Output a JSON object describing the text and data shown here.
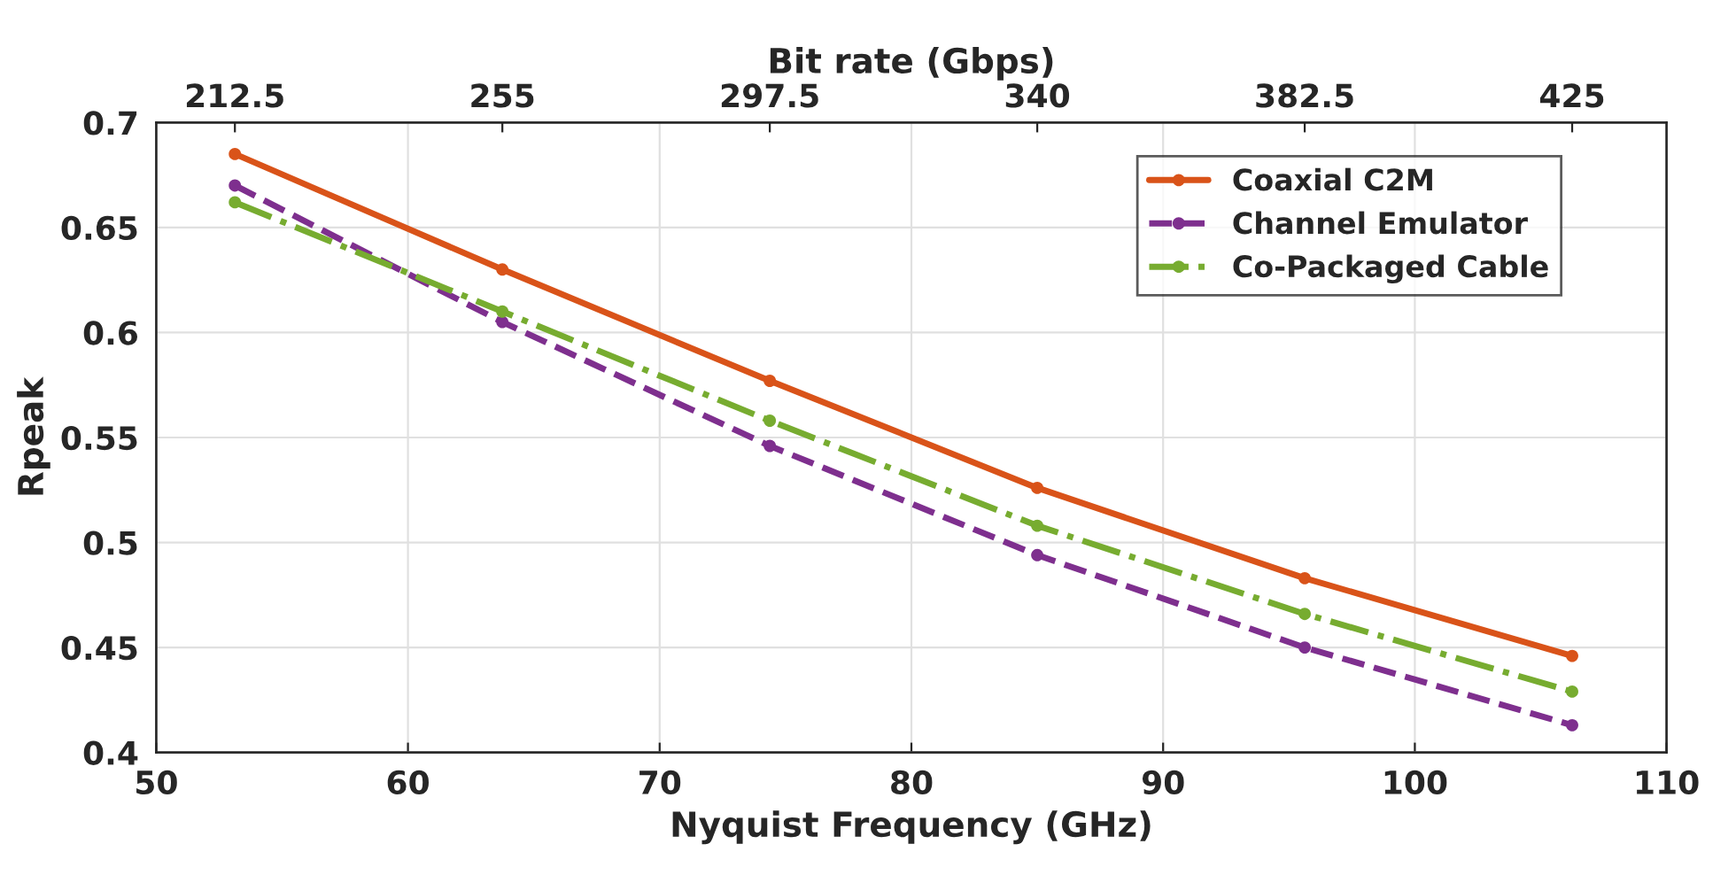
{
  "chart_data": {
    "type": "line",
    "xlabel": "Nyquist Frequency (GHz)",
    "ylabel": "Rpeak",
    "x2label": "Bit rate (Gbps)",
    "x": [
      53.125,
      63.75,
      74.375,
      85,
      95.625,
      106.25
    ],
    "series": [
      {
        "name": "Coaxial C2M",
        "color": "#d95319",
        "line_style": "solid",
        "values": [
          0.685,
          0.63,
          0.577,
          0.526,
          0.483,
          0.446
        ]
      },
      {
        "name": "Channel Emulator",
        "color": "#7e2f8e",
        "line_style": "dashed",
        "values": [
          0.67,
          0.605,
          0.546,
          0.494,
          0.45,
          0.413
        ]
      },
      {
        "name": "Co-Packaged Cable",
        "color": "#77ac30",
        "line_style": "dashdot",
        "values": [
          0.662,
          0.61,
          0.558,
          0.508,
          0.466,
          0.429
        ]
      }
    ],
    "xlim": [
      50,
      110
    ],
    "xticks": [
      50,
      60,
      70,
      80,
      90,
      100,
      110
    ],
    "ylim": [
      0.4,
      0.7
    ],
    "yticks": [
      0.4,
      0.45,
      0.5,
      0.55,
      0.6,
      0.65,
      0.7
    ],
    "x2lim": [
      200,
      440
    ],
    "x2ticks": [
      212.5,
      255,
      297.5,
      340,
      382.5,
      425
    ],
    "grid": true,
    "legend": "top right",
    "marker": "circle"
  }
}
